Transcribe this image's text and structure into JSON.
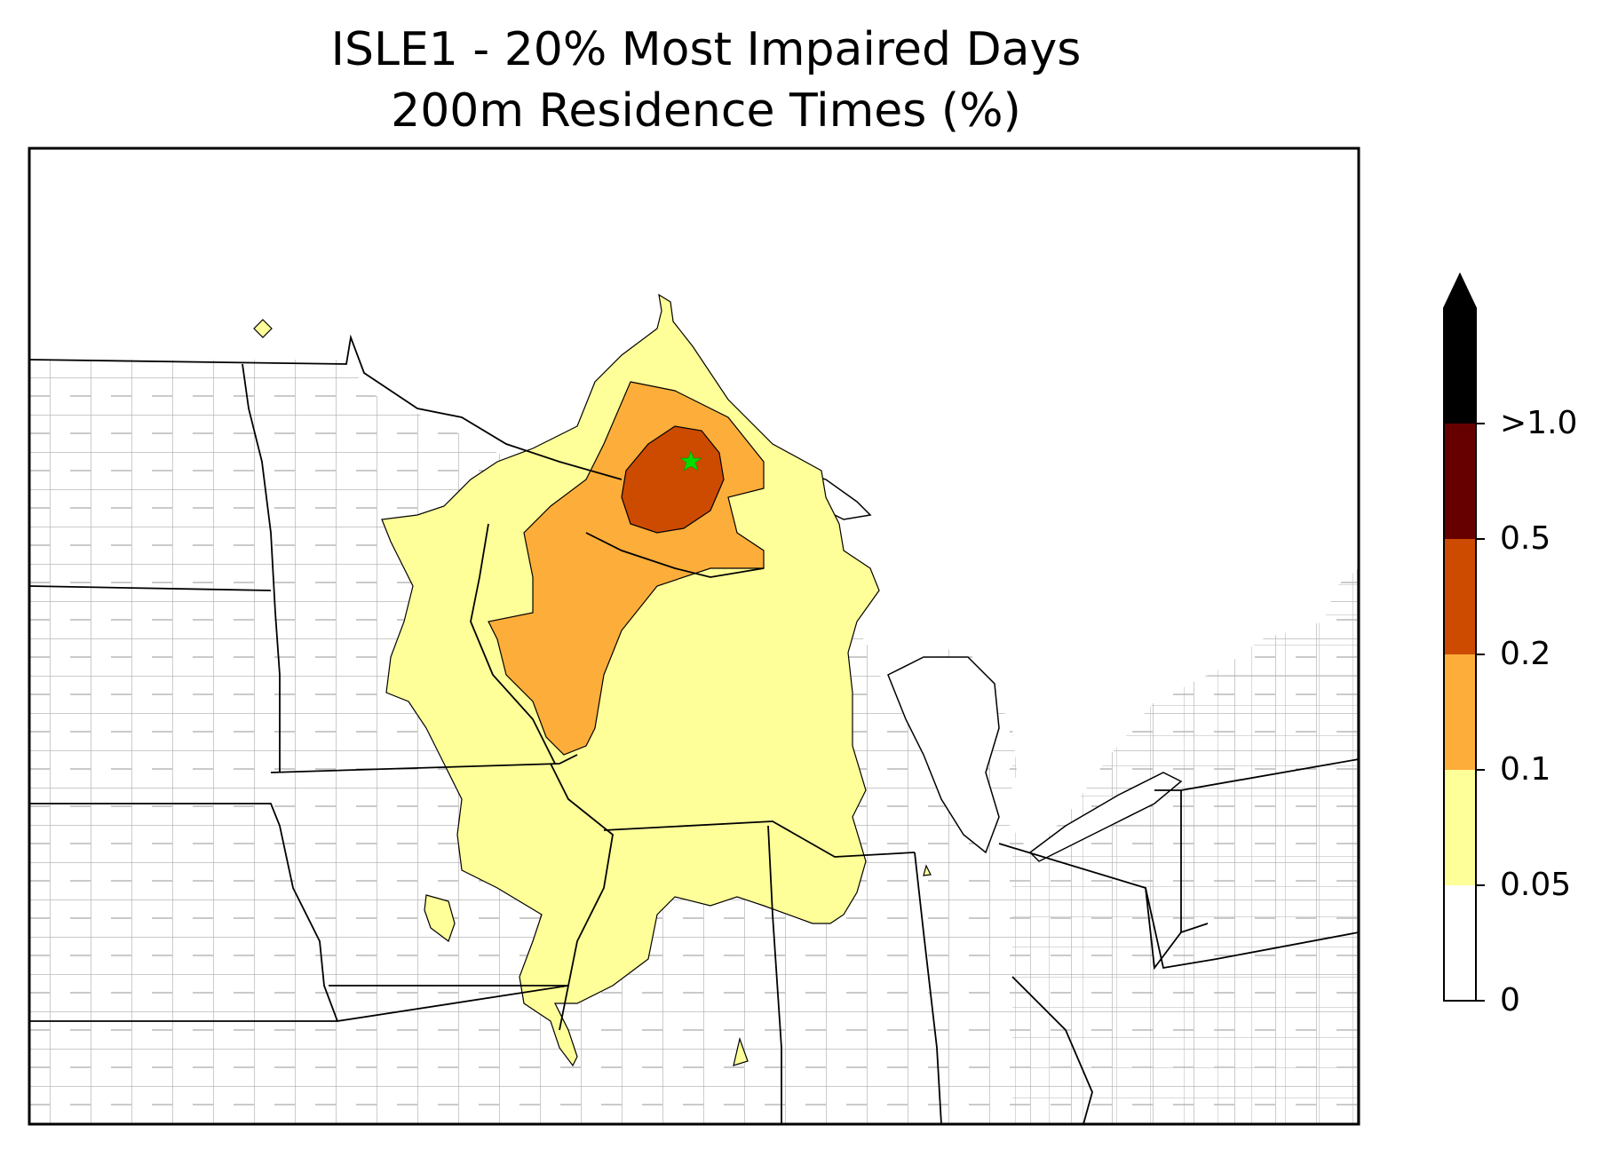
{
  "title": {
    "line1": "ISLE1 - 20% Most Impaired Days",
    "line2": "200m Residence Times (%)"
  },
  "colorbar": {
    "levels": [
      {
        "label": "0",
        "value": 0
      },
      {
        "label": "0.05",
        "value": 0.05
      },
      {
        "label": "0.1",
        "value": 0.1
      },
      {
        "label": "0.2",
        "value": 0.2
      },
      {
        "label": "0.5",
        "value": 0.5
      },
      {
        "label": ">1.0",
        "value": 1.0
      }
    ],
    "bins": [
      {
        "range": [
          0,
          0.05
        ],
        "color": "#ffffff"
      },
      {
        "range": [
          0.05,
          0.1
        ],
        "color": "#ffff99"
      },
      {
        "range": [
          0.1,
          0.2
        ],
        "color": "#fdad3a"
      },
      {
        "range": [
          0.2,
          0.5
        ],
        "color": "#cc4b00"
      },
      {
        "range": [
          0.5,
          1.0
        ],
        "color": "#660000"
      },
      {
        "range": [
          1.0,
          null
        ],
        "color": "#000000",
        "extend": "max"
      }
    ]
  },
  "map": {
    "site_marker": {
      "icon": "star-icon",
      "color": "#00dd00"
    },
    "state_border_color": "#000000",
    "county_border_color": "#aaaaaa"
  }
}
